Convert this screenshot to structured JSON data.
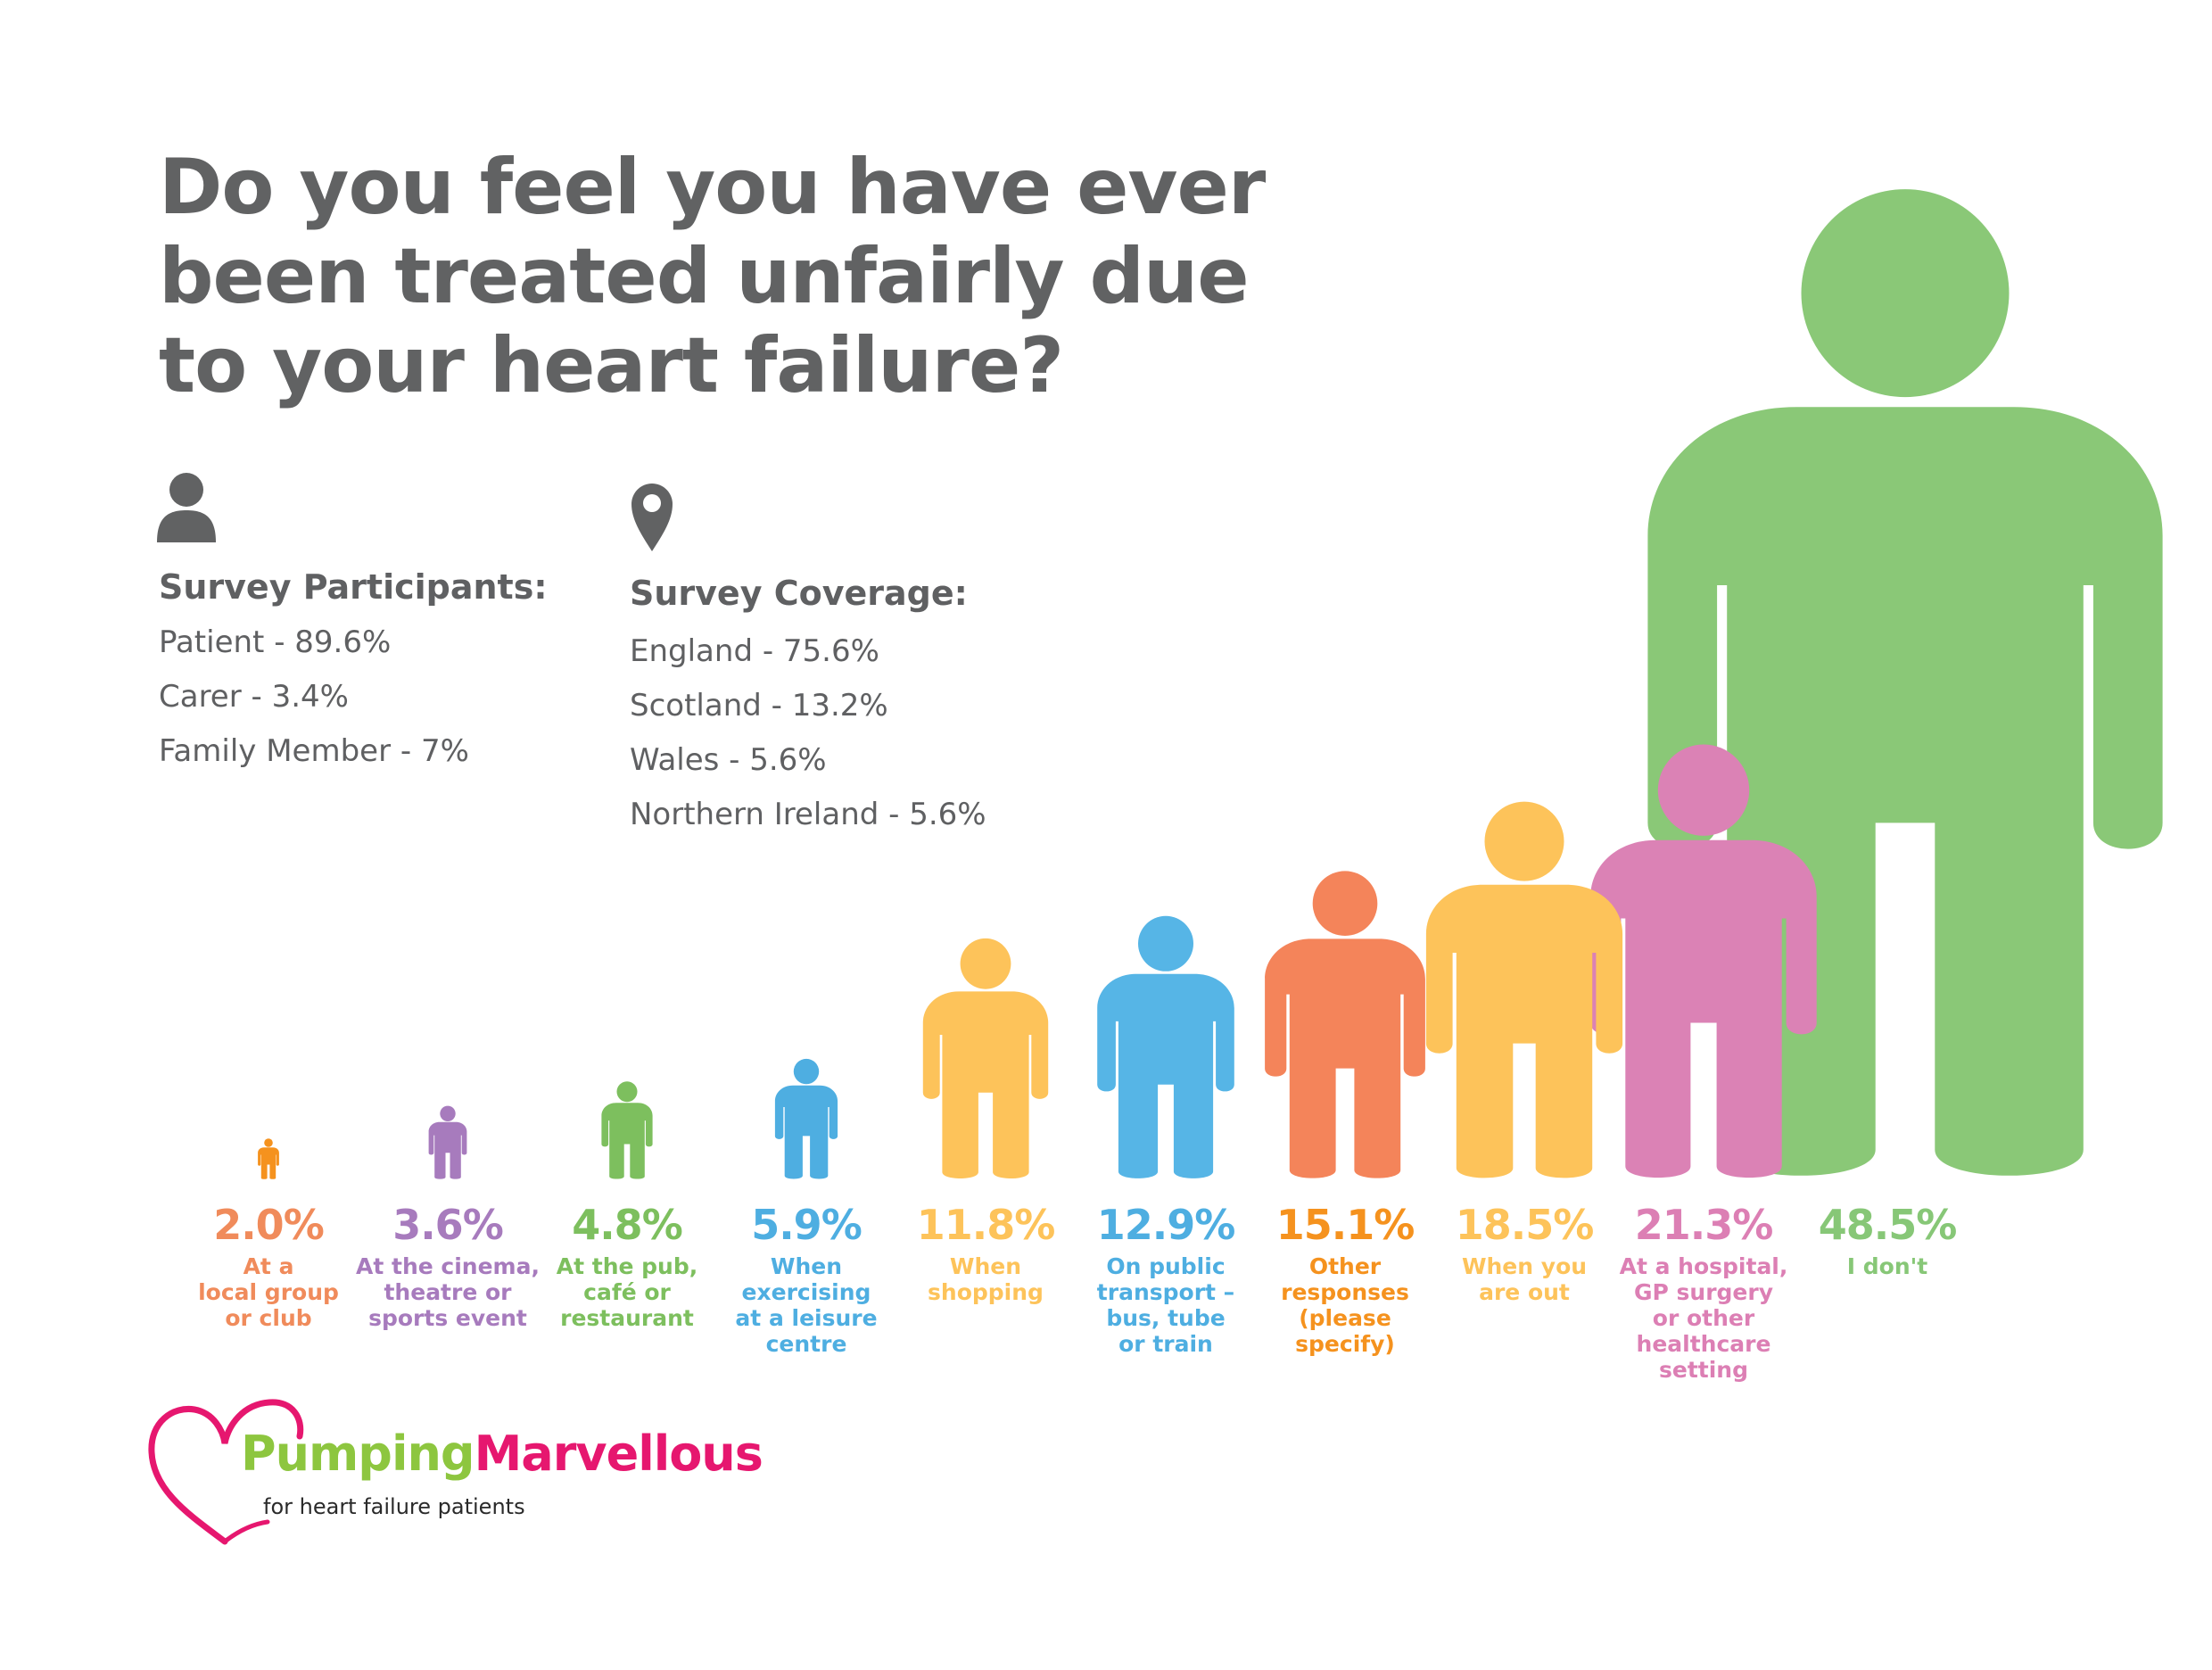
{
  "title": "Do you feel you have ever been treated unfairly due to your heart failure?",
  "participants": {
    "icon": "person-icon",
    "heading": "Survey Participants:",
    "items": [
      "Patient - 89.6%",
      "Carer - 3.4%",
      "Family Member - 7%"
    ]
  },
  "coverage": {
    "icon": "location-pin-icon",
    "heading": "Survey Coverage:",
    "items": [
      "England - 75.6%",
      "Scotland - 13.2%",
      "Wales - 5.6%",
      "Northern Ireland - 5.6%"
    ]
  },
  "chart_data": {
    "type": "bar",
    "mark": "person-pictogram",
    "unit": "%",
    "grid": false,
    "categories": [
      "At a local group or club",
      "At the cinema, theatre or sports event",
      "At the pub, café or restaurant",
      "When exercising at a leisure centre",
      "When shopping",
      "On public transport – bus, tube or train",
      "Other responses (please specify)",
      "When you are out",
      "At a hospital, GP surgery or other healthcare setting",
      "I don't"
    ],
    "label_lines": [
      [
        "At a",
        "local group",
        "or club"
      ],
      [
        "At the cinema,",
        "theatre or",
        "sports event"
      ],
      [
        "At the pub,",
        "café or",
        "restaurant"
      ],
      [
        "When",
        "exercising",
        "at a leisure",
        "centre"
      ],
      [
        "When",
        "shopping"
      ],
      [
        "On public",
        "transport –",
        "bus, tube",
        "or train"
      ],
      [
        "Other",
        "responses",
        "(please",
        "specify)"
      ],
      [
        "When you",
        "are out"
      ],
      [
        "At a hospital,",
        "GP surgery",
        "or other",
        "healthcare",
        "setting"
      ],
      [
        "I don't"
      ]
    ],
    "values": [
      2.0,
      3.6,
      4.8,
      5.9,
      11.8,
      12.9,
      15.1,
      18.5,
      21.3,
      48.5
    ],
    "value_labels": [
      "2.0%",
      "3.6%",
      "4.8%",
      "5.9%",
      "11.8%",
      "12.9%",
      "15.1%",
      "18.5%",
      "21.3%",
      "48.5%"
    ],
    "value_colors": [
      "#f08b5b",
      "#a77bbd",
      "#7dbf5e",
      "#4eaee1",
      "#fdc35a",
      "#4eaee1",
      "#f5921e",
      "#fdc35a",
      "#dc7fb4",
      "#87c777"
    ],
    "label_colors": [
      "#f08b5b",
      "#a77bbd",
      "#7dbf5e",
      "#4eaee1",
      "#fdc35a",
      "#4eaee1",
      "#f5921e",
      "#fdc35a",
      "#dc7fb4",
      "#87c777"
    ],
    "figure_colors": [
      "#f5921e",
      "#a77bbd",
      "#7dbf5e",
      "#4eaee1",
      "#fdc35a",
      "#56b5e6",
      "#f4845a",
      "#fdc35a",
      "#db82b5",
      "#8ac877"
    ]
  },
  "logo": {
    "icon": "heart-outline-icon",
    "name_part1": "Pumping",
    "name_part2": "Marvellous",
    "tagline": "for heart failure patients",
    "color1": "#8dc63f",
    "color2": "#e6176f"
  }
}
